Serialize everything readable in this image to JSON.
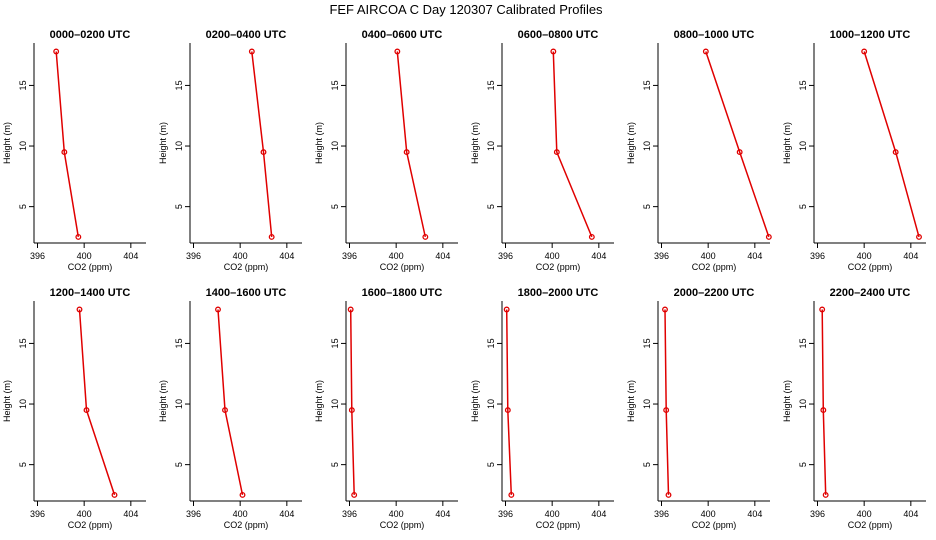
{
  "title": "FEF AIRCOA C  Day 120307  Calibrated Profiles",
  "colors": {
    "series": "#e00000",
    "axis": "#000000",
    "background": "#ffffff"
  },
  "chart_data": [
    {
      "type": "line",
      "title": "0000–0200 UTC",
      "xlabel": "CO2 (ppm)",
      "ylabel": "Height (m)",
      "xlim": [
        395.7,
        405.3
      ],
      "ylim": [
        2,
        18.5
      ],
      "xticks": [
        396,
        400,
        404
      ],
      "yticks": [
        5,
        10,
        15
      ],
      "x": [
        397.6,
        398.3,
        399.5
      ],
      "y": [
        17.8,
        9.5,
        2.5
      ],
      "grid": false
    },
    {
      "type": "line",
      "title": "0200–0400 UTC",
      "xlabel": "CO2 (ppm)",
      "ylabel": "Height (m)",
      "xlim": [
        395.7,
        405.3
      ],
      "ylim": [
        2,
        18.5
      ],
      "xticks": [
        396,
        400,
        404
      ],
      "yticks": [
        5,
        10,
        15
      ],
      "x": [
        401.0,
        402.0,
        402.7
      ],
      "y": [
        17.8,
        9.5,
        2.5
      ],
      "grid": false
    },
    {
      "type": "line",
      "title": "0400–0600 UTC",
      "xlabel": "CO2 (ppm)",
      "ylabel": "Height (m)",
      "xlim": [
        395.7,
        405.3
      ],
      "ylim": [
        2,
        18.5
      ],
      "xticks": [
        396,
        400,
        404
      ],
      "yticks": [
        5,
        10,
        15
      ],
      "x": [
        400.1,
        400.9,
        402.5
      ],
      "y": [
        17.8,
        9.5,
        2.5
      ],
      "grid": false
    },
    {
      "type": "line",
      "title": "0600–0800 UTC",
      "xlabel": "CO2 (ppm)",
      "ylabel": "Height (m)",
      "xlim": [
        395.7,
        405.3
      ],
      "ylim": [
        2,
        18.5
      ],
      "xticks": [
        396,
        400,
        404
      ],
      "yticks": [
        5,
        10,
        15
      ],
      "x": [
        400.1,
        400.4,
        403.4
      ],
      "y": [
        17.8,
        9.5,
        2.5
      ],
      "grid": false
    },
    {
      "type": "line",
      "title": "0800–1000 UTC",
      "xlabel": "CO2 (ppm)",
      "ylabel": "Height (m)",
      "xlim": [
        395.7,
        405.3
      ],
      "ylim": [
        2,
        18.5
      ],
      "xticks": [
        396,
        400,
        404
      ],
      "yticks": [
        5,
        10,
        15
      ],
      "x": [
        399.8,
        402.7,
        405.2
      ],
      "y": [
        17.8,
        9.5,
        2.5
      ],
      "grid": false
    },
    {
      "type": "line",
      "title": "1000–1200 UTC",
      "xlabel": "CO2 (ppm)",
      "ylabel": "Height (m)",
      "xlim": [
        395.7,
        405.3
      ],
      "ylim": [
        2,
        18.5
      ],
      "xticks": [
        396,
        400,
        404
      ],
      "yticks": [
        5,
        10,
        15
      ],
      "x": [
        400.0,
        402.7,
        404.7
      ],
      "y": [
        17.8,
        9.5,
        2.5
      ],
      "grid": false
    },
    {
      "type": "line",
      "title": "1200–1400 UTC",
      "xlabel": "CO2 (ppm)",
      "ylabel": "Height (m)",
      "xlim": [
        395.7,
        405.3
      ],
      "ylim": [
        2,
        18.5
      ],
      "xticks": [
        396,
        400,
        404
      ],
      "yticks": [
        5,
        10,
        15
      ],
      "x": [
        399.6,
        400.2,
        402.6
      ],
      "y": [
        17.8,
        9.5,
        2.5
      ],
      "grid": false
    },
    {
      "type": "line",
      "title": "1400–1600 UTC",
      "xlabel": "CO2 (ppm)",
      "ylabel": "Height (m)",
      "xlim": [
        395.7,
        405.3
      ],
      "ylim": [
        2,
        18.5
      ],
      "xticks": [
        396,
        400,
        404
      ],
      "yticks": [
        5,
        10,
        15
      ],
      "x": [
        398.1,
        398.7,
        400.2
      ],
      "y": [
        17.8,
        9.5,
        2.5
      ],
      "grid": false
    },
    {
      "type": "line",
      "title": "1600–1800 UTC",
      "xlabel": "CO2 (ppm)",
      "ylabel": "Height (m)",
      "xlim": [
        395.7,
        405.3
      ],
      "ylim": [
        2,
        18.5
      ],
      "xticks": [
        396,
        400,
        404
      ],
      "yticks": [
        5,
        10,
        15
      ],
      "x": [
        396.1,
        396.2,
        396.4
      ],
      "y": [
        17.8,
        9.5,
        2.5
      ],
      "grid": false
    },
    {
      "type": "line",
      "title": "1800–2000 UTC",
      "xlabel": "CO2 (ppm)",
      "ylabel": "Height (m)",
      "xlim": [
        395.7,
        405.3
      ],
      "ylim": [
        2,
        18.5
      ],
      "xticks": [
        396,
        400,
        404
      ],
      "yticks": [
        5,
        10,
        15
      ],
      "x": [
        396.1,
        396.2,
        396.5
      ],
      "y": [
        17.8,
        9.5,
        2.5
      ],
      "grid": false
    },
    {
      "type": "line",
      "title": "2000–2200 UTC",
      "xlabel": "CO2 (ppm)",
      "ylabel": "Height (m)",
      "xlim": [
        395.7,
        405.3
      ],
      "ylim": [
        2,
        18.5
      ],
      "xticks": [
        396,
        400,
        404
      ],
      "yticks": [
        5,
        10,
        15
      ],
      "x": [
        396.3,
        396.4,
        396.6
      ],
      "y": [
        17.8,
        9.5,
        2.5
      ],
      "grid": false
    },
    {
      "type": "line",
      "title": "2200–2400 UTC",
      "xlabel": "CO2 (ppm)",
      "ylabel": "Height (m)",
      "xlim": [
        395.7,
        405.3
      ],
      "ylim": [
        2,
        18.5
      ],
      "xticks": [
        396,
        400,
        404
      ],
      "yticks": [
        5,
        10,
        15
      ],
      "x": [
        396.4,
        396.5,
        396.7
      ],
      "y": [
        17.8,
        9.5,
        2.5
      ],
      "grid": false
    }
  ]
}
